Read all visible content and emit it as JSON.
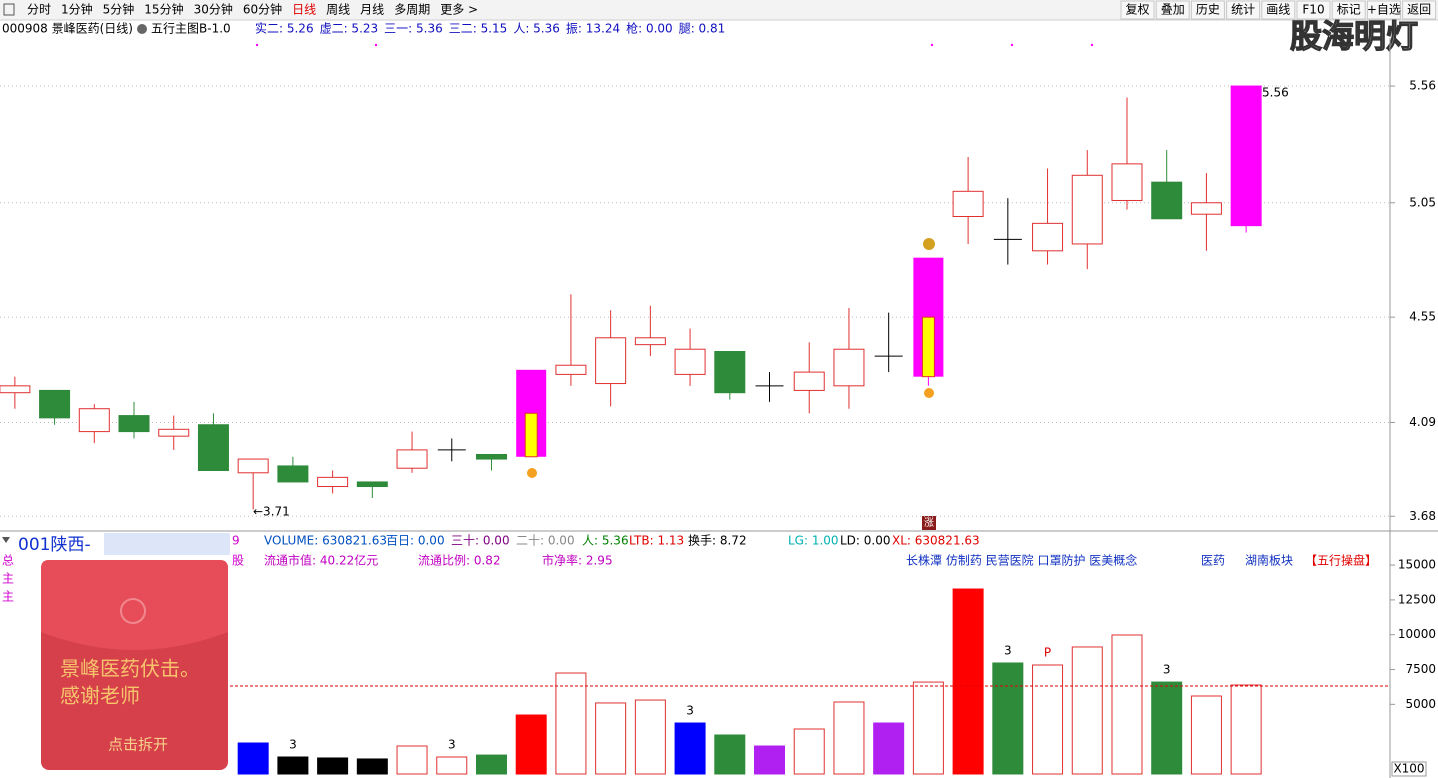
{
  "toolbar": {
    "left": [
      "分时",
      "1分钟",
      "5分钟",
      "15分钟",
      "30分钟",
      "60分钟",
      "日线",
      "周线",
      "月线",
      "多周期",
      "更多 >"
    ],
    "active": 6,
    "right": [
      "复权",
      "叠加",
      "历史",
      "统计",
      "画线",
      "F10",
      "标记",
      "+自选",
      "返回"
    ]
  },
  "watermark": "股海明灯",
  "header": {
    "stock": "000908 景峰医药(日线)",
    "indicator": "五行主图B-1.0",
    "readouts": [
      "实二: 5.26",
      "虚二: 5.23",
      "三一: 5.36",
      "三二: 5.15",
      "人: 5.36",
      "振: 13.24",
      "枪: 0.00",
      "腿: 0.81"
    ]
  },
  "price_chart": {
    "ylim": [
      3.62,
      5.77
    ],
    "yticks": [
      5.56,
      5.05,
      4.55,
      4.09,
      3.68
    ],
    "open": [
      4.22,
      4.23,
      4.05,
      4.12,
      4.03,
      4.08,
      3.87,
      3.9,
      3.81,
      3.83,
      3.89,
      3.97,
      3.95,
      3.94,
      4.3,
      4.26,
      4.43,
      4.3,
      4.4,
      4.25,
      4.23,
      4.25,
      4.38,
      4.29,
      4.99,
      4.89,
      4.84,
      4.87,
      5.06,
      5.14,
      5.0,
      4.95
    ],
    "high": [
      4.29,
      4.23,
      4.17,
      4.18,
      4.12,
      4.13,
      3.93,
      3.94,
      3.88,
      3.83,
      4.05,
      4.02,
      3.95,
      4.13,
      4.65,
      4.58,
      4.6,
      4.5,
      4.4,
      4.31,
      4.44,
      4.59,
      4.57,
      4.55,
      5.25,
      5.07,
      5.2,
      5.28,
      5.51,
      5.28,
      5.18,
      5.56
    ],
    "low": [
      4.15,
      4.08,
      4.0,
      4.02,
      3.97,
      3.88,
      3.71,
      3.83,
      3.78,
      3.76,
      3.87,
      3.92,
      3.88,
      3.94,
      4.25,
      4.16,
      4.38,
      4.25,
      4.19,
      4.18,
      4.13,
      4.15,
      4.31,
      4.25,
      4.87,
      4.78,
      4.78,
      4.76,
      5.02,
      4.98,
      4.84,
      4.92
    ],
    "close": [
      4.25,
      4.11,
      4.15,
      4.05,
      4.06,
      3.88,
      3.93,
      3.83,
      3.85,
      3.81,
      3.97,
      3.97,
      3.93,
      4.13,
      4.34,
      4.46,
      4.46,
      4.41,
      4.22,
      4.25,
      4.31,
      4.41,
      4.38,
      4.55,
      5.1,
      4.89,
      4.96,
      5.17,
      5.22,
      4.98,
      5.05,
      5.56
    ],
    "highlight": [
      null,
      null,
      null,
      null,
      null,
      null,
      null,
      null,
      null,
      null,
      null,
      null,
      null,
      [
        3.94,
        4.32
      ],
      null,
      null,
      null,
      null,
      null,
      null,
      null,
      null,
      null,
      [
        4.29,
        4.81
      ],
      null,
      null,
      null,
      null,
      null,
      null,
      null,
      [
        4.95,
        5.56
      ]
    ],
    "core_color": [
      null,
      null,
      null,
      null,
      null,
      null,
      null,
      null,
      null,
      null,
      null,
      null,
      null,
      "#ffff00",
      null,
      null,
      null,
      null,
      null,
      null,
      null,
      null,
      null,
      "#ffff00",
      null,
      null,
      null,
      null,
      null,
      null,
      null,
      null
    ],
    "up_color": "#e03030",
    "down_color": "#2e8b3a",
    "highlight_color": "#ff00ff",
    "high_label": "5.56",
    "low_label": "←3.71",
    "rise_icon": "涨"
  },
  "volume_panel": {
    "title": "001陕西-",
    "side": [
      "总",
      "主",
      "主"
    ],
    "side2": [
      "9",
      "股"
    ],
    "info": [
      {
        "text": "VOLUME: 630821.63",
        "color": "#0050c0"
      },
      {
        "text": "百日: 0.00",
        "color": "#0050c0"
      },
      {
        "text": "三十: 0.00",
        "color": "#800080"
      },
      {
        "text": "二十: 0.00",
        "color": "#888888"
      },
      {
        "text": "人: 5.36",
        "color": "#008000"
      },
      {
        "text": "LTB: 1.13",
        "color": "#e00000"
      },
      {
        "text": "换手: 8.72",
        "color": "#000000"
      },
      {
        "text": "LG: 1.00",
        "color": "#00b0b0"
      },
      {
        "text": "LD: 0.00",
        "color": "#000000"
      },
      {
        "text": "XL: 630821.63",
        "color": "#e00000"
      }
    ],
    "info2": [
      "流通市值:  40.22亿元",
      "流通比例:  0.82",
      "市净率:  2.95"
    ],
    "concepts": "长株潭 仿制药 民营医院 口罩防护 医美概念",
    "sector": "医药",
    "region": "湖南板块",
    "tag": "【五行操盘】",
    "ylim": [
      0,
      16800
    ],
    "yticks": [
      15000,
      12500,
      10000,
      7500,
      5000
    ],
    "ma": 6320,
    "volumes": [
      null,
      null,
      null,
      null,
      null,
      null,
      2225,
      1220,
      1150,
      1080,
      2010,
      1220,
      1360,
      4235,
      7250,
      5100,
      5310,
      3660,
      2800,
      2010,
      3230,
      5170,
      3660,
      6600,
      13280,
      7970,
      7825,
      9120,
      9980,
      6600,
      5600,
      6390
    ],
    "colors": [
      null,
      null,
      null,
      null,
      null,
      null,
      "#0000ff",
      "#000000",
      "#000000",
      "#000000",
      "#e03030",
      "#e03030",
      "#2e8b3a",
      "#ff0000",
      "#e03030",
      "#e03030",
      "#e03030",
      "#0000ff",
      "#2e8b3a",
      "#b020f0",
      "#e03030",
      "#e03030",
      "#b020f0",
      "#e03030",
      "#ff0000",
      "#2e8b3a",
      "#e03030",
      "#e03030",
      "#e03030",
      "#2e8b3a",
      "#e03030",
      "#e03030"
    ],
    "hollow": [
      null,
      null,
      null,
      null,
      null,
      null,
      false,
      false,
      false,
      false,
      true,
      true,
      false,
      false,
      true,
      true,
      true,
      false,
      false,
      false,
      true,
      true,
      false,
      true,
      false,
      false,
      true,
      true,
      true,
      false,
      true,
      true
    ],
    "labels": [
      null,
      null,
      null,
      null,
      null,
      null,
      null,
      "3",
      null,
      null,
      null,
      "3",
      null,
      null,
      null,
      null,
      null,
      "3",
      null,
      null,
      null,
      null,
      null,
      null,
      null,
      "3",
      "P",
      null,
      null,
      "3",
      null,
      null
    ],
    "scale": "X100"
  },
  "popup": {
    "line1": "景峰医药伏击。",
    "line2": "感谢老师",
    "button": "点击拆开"
  }
}
